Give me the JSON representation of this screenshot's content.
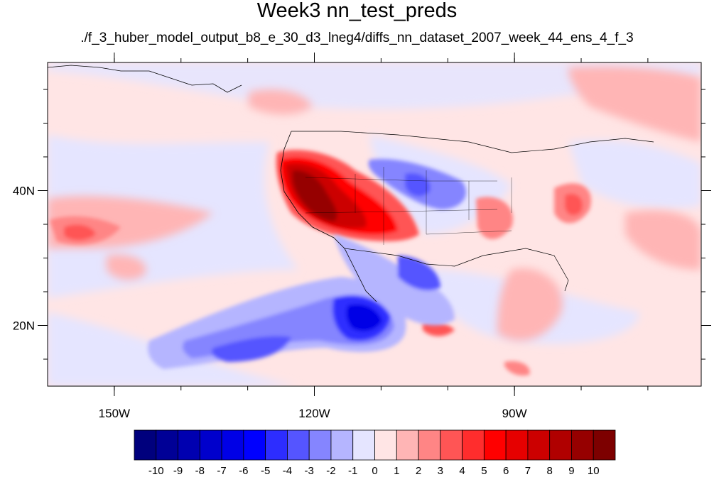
{
  "title": "Week3 nn_test_preds",
  "subtitle": "./f_3_huber_model_output_b8_e_30_d3_lneg4/diffs_nn_dataset_2007_week_44_ens_4_f_3",
  "map": {
    "lon_range": [
      -160,
      -62
    ],
    "lat_range": [
      11,
      59
    ],
    "lon_ticks": [
      {
        "value": -150,
        "label": "150W"
      },
      {
        "value": -120,
        "label": "120W"
      },
      {
        "value": -90,
        "label": "90W"
      }
    ],
    "lat_ticks": [
      {
        "value": 20,
        "label": "20N"
      },
      {
        "value": 40,
        "label": "40N"
      }
    ]
  },
  "colorbar": {
    "labels": [
      "-10",
      "-9",
      "-8",
      "-7",
      "-6",
      "-5",
      "-4",
      "-3",
      "-2",
      "-1",
      "0",
      "1",
      "2",
      "3",
      "4",
      "5",
      "6",
      "7",
      "8",
      "9",
      "10"
    ],
    "colors": [
      "#00007d",
      "#000096",
      "#0000b0",
      "#0000cc",
      "#0000e6",
      "#0000ff",
      "#2d2dff",
      "#5555ff",
      "#8585ff",
      "#b5b5ff",
      "#e5e5ff",
      "#ffe5e5",
      "#ffb5b5",
      "#ff8585",
      "#ff5555",
      "#ff2d2d",
      "#ff0000",
      "#e60000",
      "#cc0000",
      "#b00000",
      "#960000",
      "#7d0000"
    ]
  }
}
